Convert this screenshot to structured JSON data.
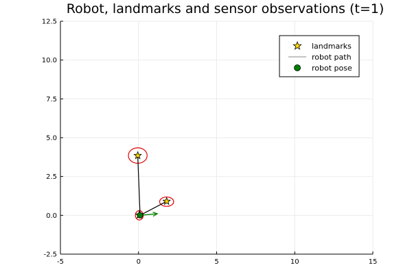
{
  "chart_data": {
    "type": "scatter",
    "title": "Robot, landmarks and sensor observations (t=1)",
    "xlabel": "",
    "ylabel": "",
    "xlim": [
      -5,
      15
    ],
    "ylim": [
      -2.5,
      12.5
    ],
    "x_ticks": [
      -5,
      0,
      5,
      10,
      15
    ],
    "x_tick_labels": [
      "-5",
      "0",
      "5",
      "10",
      "15"
    ],
    "y_ticks": [
      -2.5,
      0.0,
      2.5,
      5.0,
      7.5,
      10.0,
      12.5
    ],
    "y_tick_labels": [
      "-2.5",
      "0.0",
      "2.5",
      "5.0",
      "7.5",
      "10.0",
      "12.5"
    ],
    "grid": true,
    "legend_position": "top-right",
    "series": [
      {
        "name": "landmarks",
        "marker": "star",
        "color": "#ffd700",
        "points": [
          {
            "x": -0.05,
            "y": 3.85
          },
          {
            "x": 1.8,
            "y": 0.9
          },
          {
            "x": 0.05,
            "y": 0.02
          }
        ]
      },
      {
        "name": "robot path",
        "marker": "line",
        "color": "#a0a0a0",
        "points": [
          {
            "x": 0.1,
            "y": 0.0
          }
        ]
      },
      {
        "name": "robot pose",
        "marker": "circle",
        "color": "#008000",
        "points": [
          {
            "x": 0.1,
            "y": 0.0
          }
        ],
        "heading": {
          "dx": 1.1,
          "dy": 0.1
        }
      }
    ],
    "observations": [
      {
        "from": {
          "x": 0.1,
          "y": 0.0
        },
        "to": {
          "x": -0.05,
          "y": 3.85
        }
      },
      {
        "from": {
          "x": 0.1,
          "y": 0.0
        },
        "to": {
          "x": 1.8,
          "y": 0.9
        }
      }
    ],
    "uncertainty_ellipses": [
      {
        "cx": -0.05,
        "cy": 3.85,
        "rx": 0.6,
        "ry": 0.5
      },
      {
        "cx": 1.8,
        "cy": 0.88,
        "rx": 0.45,
        "ry": 0.3
      },
      {
        "cx": 0.05,
        "cy": 0.0,
        "rx": 0.25,
        "ry": 0.3
      }
    ],
    "colors": {
      "observation_line": "#000000",
      "ellipse": "#e00000",
      "arrow": "#008000"
    }
  }
}
